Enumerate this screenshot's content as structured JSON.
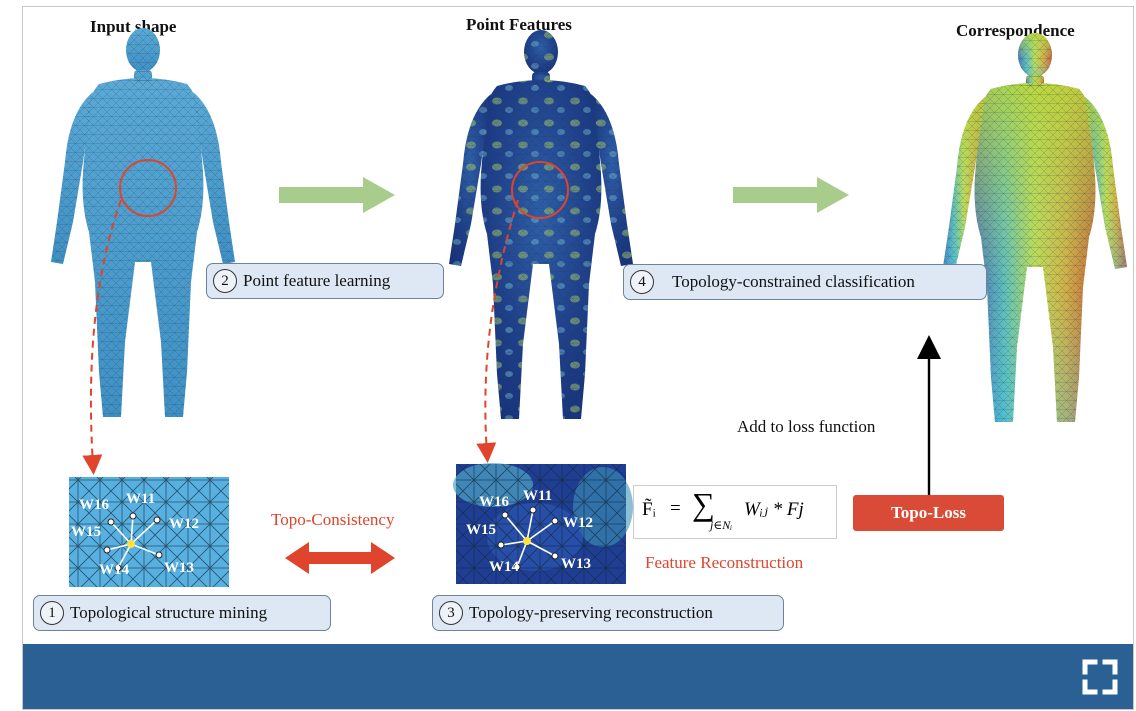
{
  "titles": {
    "input": "Input shape",
    "features": "Point Features",
    "correspondence": "Correspondence"
  },
  "steps": [
    {
      "num": "1",
      "label": "Topological structure mining"
    },
    {
      "num": "2",
      "label": "Point feature learning"
    },
    {
      "num": "3",
      "label": "Topology-preserving reconstruction"
    },
    {
      "num": "4",
      "label": "Topology-constrained classification"
    }
  ],
  "labels": {
    "topo_consistency": "Topo-Consistency",
    "feature_reconstruction": "Feature Reconstruction",
    "add_to_loss": "Add to loss function",
    "topo_loss": "Topo-Loss"
  },
  "formula": {
    "lhs": "F̃ᵢ",
    "equals": "=",
    "sum": "∑",
    "subscript": "j∈Nᵢ",
    "term": "Wᵢⱼ * Fj"
  },
  "weights": [
    "W16",
    "W11",
    "W12",
    "W15",
    "W14",
    "W13"
  ],
  "icons": {
    "fullscreen": "fullscreen-icon"
  },
  "colors": {
    "bar": "#2a6093",
    "accent_red": "#e0442c",
    "step_fill": "#dde8f4",
    "green_arrow": "#a8cc8c"
  }
}
